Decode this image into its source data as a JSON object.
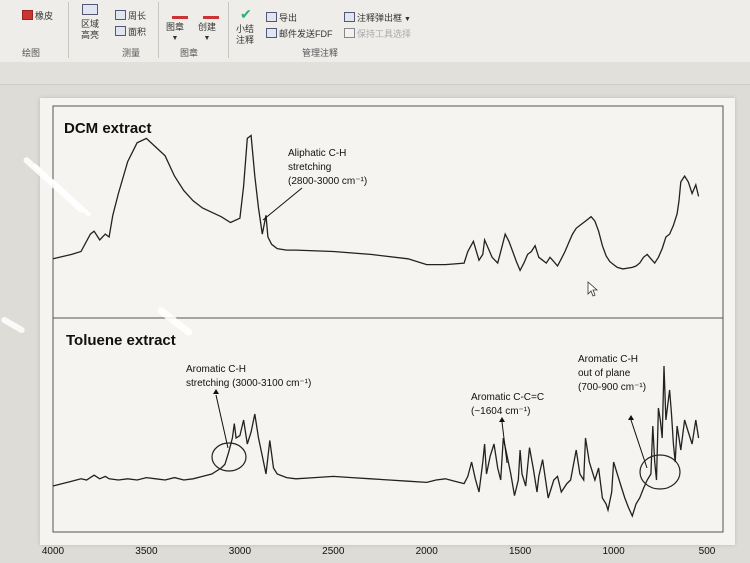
{
  "ribbon": {
    "eraser": "橡皮",
    "region_highlight": [
      "区域",
      "高亮"
    ],
    "perimeter": "周长",
    "area": "面积",
    "stamp": "图章",
    "create": "创建",
    "summary_note": [
      "小结",
      "注释"
    ],
    "export": "导出",
    "email_pdf": "邮件发送FDF",
    "annot_popup": "注释弹出框",
    "keep_tool": "保持工具选择",
    "groups": {
      "draw": "绘图",
      "measure": "测量",
      "stamp": "图章",
      "manage": "管理注释"
    }
  },
  "chart_data": {
    "type": "line",
    "xlabel": "",
    "ylabel": "",
    "x_axis": {
      "ticks": [
        4000,
        3500,
        3000,
        2500,
        2000,
        1500,
        1000,
        500
      ],
      "reversed": true,
      "xlim": [
        4000,
        500
      ]
    },
    "panels": [
      {
        "title": "DCM extract",
        "annotations": [
          {
            "lines": [
              "Aliphatic C-H",
              "stretching",
              "(2800-3000 cm⁻¹)"
            ],
            "x": 2900
          }
        ],
        "series": [
          {
            "x": [
              4000,
              3900,
              3850,
              3800,
              3780,
              3750,
              3720,
              3700,
              3680,
              3650,
              3600,
              3550,
              3500,
              3450,
              3400,
              3350,
              3300,
              3250,
              3200,
              3150,
              3100,
              3050,
              3000,
              2980,
              2960,
              2940,
              2920,
              2900,
              2880,
              2860,
              2850,
              2830,
              2800,
              2750,
              2700,
              2500,
              2300,
              2100,
              2000,
              1900,
              1800,
              1780,
              1750,
              1720,
              1700,
              1690,
              1670,
              1650,
              1620,
              1600,
              1580,
              1560,
              1540,
              1520,
              1500,
              1480,
              1460,
              1440,
              1420,
              1400,
              1380,
              1360,
              1340,
              1320,
              1300,
              1280,
              1260,
              1240,
              1220,
              1200,
              1180,
              1150,
              1120,
              1100,
              1080,
              1060,
              1040,
              1020,
              1000,
              980,
              950,
              900,
              880,
              860,
              840,
              820,
              800,
              780,
              760,
              740,
              720,
              700,
              680,
              660,
              650,
              640,
              620,
              600,
              580,
              560,
              545
            ],
            "y": [
              0.05,
              0.08,
              0.1,
              0.22,
              0.24,
              0.18,
              0.22,
              0.2,
              0.35,
              0.5,
              0.72,
              0.85,
              0.88,
              0.82,
              0.76,
              0.62,
              0.52,
              0.45,
              0.4,
              0.37,
              0.34,
              0.3,
              0.33,
              0.55,
              0.88,
              0.9,
              0.62,
              0.4,
              0.22,
              0.35,
              0.2,
              0.15,
              0.12,
              0.11,
              0.11,
              0.1,
              0.08,
              0.05,
              0.01,
              0.01,
              0.02,
              0.1,
              0.17,
              0.04,
              0.08,
              0.18,
              0.12,
              0.06,
              0.02,
              0.12,
              0.22,
              0.17,
              0.1,
              0.03,
              -0.03,
              0.02,
              0.08,
              0.1,
              0.14,
              0.06,
              0.04,
              0.02,
              0.06,
              0.03,
              0.0,
              0.05,
              0.1,
              0.16,
              0.22,
              0.26,
              0.28,
              0.31,
              0.34,
              0.31,
              0.24,
              0.14,
              0.07,
              0.03,
              0.01,
              -0.01,
              -0.02,
              -0.01,
              0.0,
              0.02,
              0.06,
              0.08,
              0.05,
              0.02,
              0.06,
              0.12,
              0.2,
              0.22,
              0.28,
              0.36,
              0.45,
              0.58,
              0.62,
              0.58,
              0.5,
              0.56,
              0.48
            ]
          }
        ]
      },
      {
        "title": "Toluene extract",
        "annotations": [
          {
            "lines": [
              "Aromatic C-H",
              "stretching (3000-3100 cm⁻¹)"
            ],
            "x": 3050
          },
          {
            "lines": [
              "Aromatic C-C=C",
              "(~1604 cm⁻¹)"
            ],
            "x": 1604
          },
          {
            "lines": [
              "Aromatic C-H",
              "out of plane",
              "(700-900 cm⁻¹)"
            ],
            "x": 760
          }
        ],
        "series": [
          {
            "x": [
              4000,
              3950,
              3900,
              3850,
              3820,
              3800,
              3780,
              3750,
              3720,
              3700,
              3650,
              3600,
              3550,
              3500,
              3450,
              3400,
              3350,
              3300,
              3250,
              3200,
              3150,
              3100,
              3080,
              3060,
              3040,
              3030,
              3020,
              3000,
              2980,
              2960,
              2940,
              2920,
              2900,
              2880,
              2860,
              2840,
              2820,
              2800,
              2750,
              2700,
              2600,
              2500,
              2400,
              2300,
              2200,
              2100,
              2000,
              1950,
              1900,
              1850,
              1800,
              1780,
              1760,
              1740,
              1720,
              1700,
              1690,
              1680,
              1660,
              1640,
              1620,
              1604,
              1590,
              1570,
              1550,
              1530,
              1510,
              1500,
              1490,
              1470,
              1450,
              1430,
              1410,
              1400,
              1380,
              1350,
              1320,
              1300,
              1280,
              1250,
              1230,
              1200,
              1180,
              1160,
              1150,
              1130,
              1100,
              1080,
              1060,
              1040,
              1030,
              1010,
              1000,
              980,
              960,
              940,
              920,
              900,
              880,
              860,
              840,
              820,
              800,
              790,
              780,
              770,
              760,
              750,
              740,
              730,
              720,
              700,
              690,
              680,
              670,
              660,
              650,
              640,
              620,
              600,
              580,
              560,
              545
            ],
            "y": [
              0.0,
              0.02,
              0.04,
              0.06,
              0.05,
              0.07,
              0.09,
              0.06,
              0.08,
              0.06,
              0.05,
              0.06,
              0.05,
              0.07,
              0.06,
              0.05,
              0.07,
              0.05,
              0.06,
              0.08,
              0.1,
              0.15,
              0.18,
              0.28,
              0.4,
              0.52,
              0.4,
              0.42,
              0.55,
              0.35,
              0.45,
              0.6,
              0.4,
              0.25,
              0.1,
              0.38,
              0.15,
              0.1,
              0.07,
              0.06,
              0.07,
              0.08,
              0.07,
              0.06,
              0.05,
              0.04,
              0.03,
              0.05,
              0.06,
              0.04,
              0.02,
              0.08,
              0.2,
              0.06,
              -0.05,
              0.2,
              0.35,
              0.1,
              0.25,
              0.35,
              0.15,
              0.05,
              0.4,
              0.25,
              0.1,
              -0.08,
              0.05,
              0.3,
              0.1,
              0.0,
              0.32,
              0.15,
              -0.05,
              0.08,
              0.22,
              -0.1,
              0.05,
              0.08,
              -0.05,
              0.02,
              0.05,
              0.3,
              0.1,
              0.05,
              0.4,
              0.2,
              0.05,
              0.15,
              -0.1,
              -0.15,
              -0.2,
              -0.05,
              0.2,
              0.1,
              0.0,
              -0.1,
              -0.18,
              -0.25,
              -0.15,
              -0.1,
              -0.02,
              0.05,
              0.1,
              0.5,
              0.2,
              0.05,
              0.65,
              0.55,
              0.4,
              1.0,
              0.55,
              0.8,
              0.6,
              0.35,
              0.2,
              0.5,
              0.4,
              0.3,
              0.55,
              0.45,
              0.35,
              0.55,
              0.4
            ]
          }
        ]
      }
    ]
  }
}
